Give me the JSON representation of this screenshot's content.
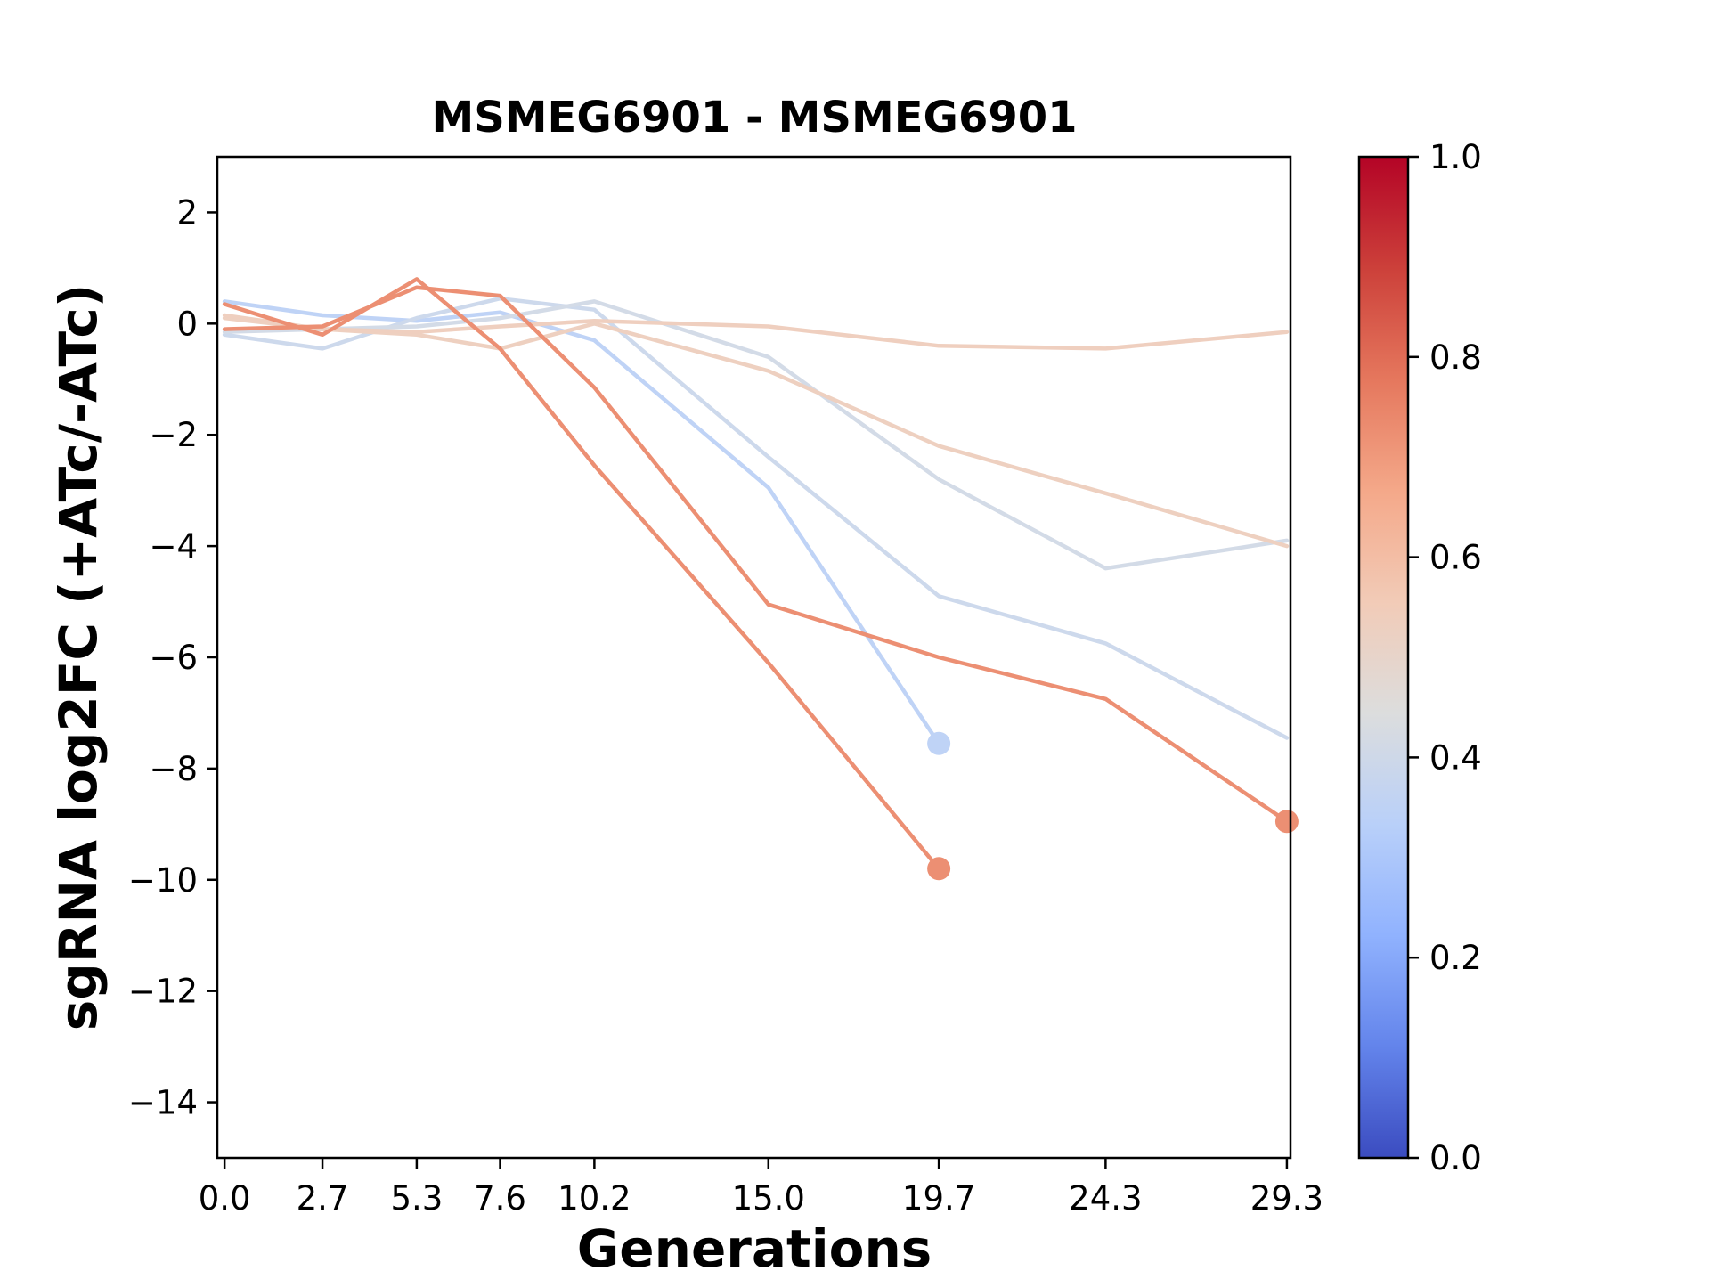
{
  "chart_data": {
    "type": "line",
    "title": "MSMEG6901 - MSMEG6901",
    "xlabel": "Generations",
    "ylabel": "sgRNA log2FC (+ATc/-ATc)",
    "xlim": [
      -0.2,
      29.4
    ],
    "ylim": [
      -15,
      3
    ],
    "x_ticks": [
      0.0,
      2.7,
      5.3,
      7.6,
      10.2,
      15.0,
      19.7,
      24.3,
      29.3
    ],
    "x_tick_labels": [
      "0.0",
      "2.7",
      "5.3",
      "7.6",
      "10.2",
      "15.0",
      "19.7",
      "24.3",
      "29.3"
    ],
    "y_ticks": [
      2,
      0,
      -2,
      -4,
      -6,
      -8,
      -10,
      -12,
      -14
    ],
    "y_tick_labels": [
      "2",
      "0",
      "−2",
      "−4",
      "−6",
      "−8",
      "−10",
      "−12",
      "−14"
    ],
    "grid": false,
    "legend": "none",
    "colorbar": {
      "colormap": "coolwarm",
      "range": [
        0.0,
        1.0
      ],
      "ticks": [
        0.0,
        0.2,
        0.4,
        0.6,
        0.8,
        1.0
      ],
      "tick_labels": [
        "0.0",
        "0.2",
        "0.4",
        "0.6",
        "0.8",
        "1.0"
      ],
      "stops": [
        "#3b4cc0",
        "#6384eb",
        "#90b2fe",
        "#b9d0f9",
        "#dcdddd",
        "#f2cbb7",
        "#f4a889",
        "#e5775d",
        "#cc403a",
        "#b40426"
      ]
    },
    "series": [
      {
        "color_value": 0.37,
        "color": "#bfd3f6",
        "x": [
          0.0,
          2.7,
          5.3,
          7.6,
          10.2,
          15.0,
          19.7
        ],
        "y": [
          0.4,
          0.15,
          0.05,
          0.2,
          -0.3,
          -2.95,
          -7.55
        ],
        "end_marker": true
      },
      {
        "color_value": 0.42,
        "color": "#cdd9ec",
        "x": [
          0.0,
          2.7,
          5.3,
          7.6,
          10.2,
          15.0,
          19.7,
          24.3,
          29.3
        ],
        "y": [
          -0.2,
          -0.45,
          0.1,
          0.45,
          0.25,
          -2.4,
          -4.9,
          -5.75,
          -7.45
        ],
        "end_marker": false
      },
      {
        "color_value": 0.44,
        "color": "#d3dbe7",
        "x": [
          0.0,
          2.7,
          5.3,
          7.6,
          10.2,
          15.0,
          19.7,
          24.3,
          29.3
        ],
        "y": [
          -0.15,
          -0.1,
          -0.05,
          0.1,
          0.4,
          -0.6,
          -2.8,
          -4.4,
          -3.9
        ],
        "end_marker": false
      },
      {
        "color_value": 0.58,
        "color": "#eed0c0",
        "x": [
          0.0,
          2.7,
          5.3,
          7.6,
          10.2,
          15.0,
          19.7,
          24.3,
          29.3
        ],
        "y": [
          0.1,
          -0.1,
          -0.2,
          -0.45,
          0.0,
          -0.85,
          -2.2,
          -3.05,
          -4.0
        ],
        "end_marker": false
      },
      {
        "color_value": 0.6,
        "color": "#efcfbf",
        "x": [
          0.0,
          2.7,
          5.3,
          7.6,
          10.2,
          15.0,
          19.7,
          24.3,
          29.3
        ],
        "y": [
          0.15,
          -0.1,
          -0.15,
          -0.05,
          0.05,
          -0.05,
          -0.4,
          -0.45,
          -0.15
        ],
        "end_marker": false
      },
      {
        "color_value": 0.78,
        "color": "#ec8f73",
        "x": [
          0.0,
          2.7,
          5.3,
          7.6,
          10.2,
          15.0,
          19.7
        ],
        "y": [
          0.35,
          -0.2,
          0.8,
          -0.45,
          -2.55,
          -6.1,
          -9.8
        ],
        "end_marker": true
      },
      {
        "color_value": 0.78,
        "color": "#ec8f73",
        "x": [
          0.0,
          2.7,
          5.3,
          7.6,
          10.2,
          15.0,
          19.7,
          24.3,
          29.3
        ],
        "y": [
          -0.1,
          -0.05,
          0.65,
          0.5,
          -1.15,
          -5.05,
          -6.0,
          -6.75,
          -8.95
        ],
        "end_marker": true
      }
    ]
  }
}
